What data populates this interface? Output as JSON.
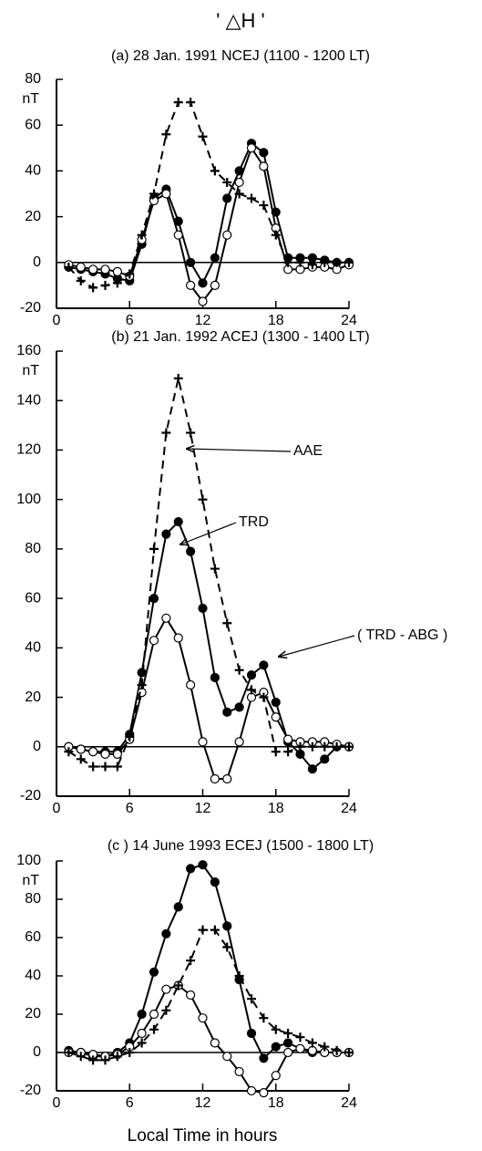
{
  "title": "' △H '",
  "chart_data": [
    {
      "type": "line",
      "title": "(a)   28 Jan. 1991  NCEJ (1100 - 1200 LT)",
      "y_label": "nT",
      "x": [
        1,
        2,
        3,
        4,
        5,
        6,
        7,
        8,
        9,
        10,
        11,
        12,
        13,
        14,
        15,
        16,
        17,
        18,
        19,
        20,
        21,
        22,
        23,
        24
      ],
      "xlim": [
        0,
        24
      ],
      "xticks": [
        0,
        6,
        12,
        18,
        24
      ],
      "ylim": [
        -20,
        80
      ],
      "yticks": [
        -20,
        0,
        20,
        40,
        60,
        80
      ],
      "zero_line": true,
      "series": [
        {
          "marker": "filled",
          "dashed": false,
          "color": "#000000",
          "values": [
            -2,
            -3,
            -4,
            -5,
            -7,
            -8,
            8,
            28,
            32,
            18,
            0,
            -9,
            2,
            28,
            40,
            52,
            48,
            22,
            2,
            2,
            2,
            1,
            0,
            0
          ]
        },
        {
          "marker": "open",
          "dashed": false,
          "color": "#000000",
          "values": [
            -1,
            -2,
            -3,
            -3,
            -4,
            -6,
            10,
            27,
            30,
            12,
            -10,
            -17,
            -10,
            12,
            35,
            50,
            42,
            15,
            -3,
            -3,
            -2,
            -2,
            -3,
            -1
          ]
        },
        {
          "marker": "plus",
          "dashed": true,
          "color": "#000000",
          "values": [
            -2,
            -8,
            -11,
            -10,
            -9,
            -5,
            12,
            30,
            56,
            70,
            70,
            55,
            40,
            35,
            30,
            28,
            25,
            12,
            0,
            0,
            -1,
            0,
            0,
            0
          ]
        }
      ]
    },
    {
      "type": "line",
      "title": "(b)   21 Jan. 1992  ACEJ (1300 - 1400 LT)",
      "y_label": "nT",
      "x": [
        1,
        2,
        3,
        4,
        5,
        6,
        7,
        8,
        9,
        10,
        11,
        12,
        13,
        14,
        15,
        16,
        17,
        18,
        19,
        20,
        21,
        22,
        23,
        24
      ],
      "xlim": [
        0,
        24
      ],
      "xticks": [
        0,
        6,
        12,
        18,
        24
      ],
      "ylim": [
        -20,
        160
      ],
      "yticks": [
        -20,
        0,
        20,
        40,
        60,
        80,
        100,
        120,
        140,
        160
      ],
      "zero_line": true,
      "series": [
        {
          "marker": "filled",
          "dashed": false,
          "color": "#000000",
          "values": [
            0,
            -1,
            -2,
            -2,
            -2,
            5,
            30,
            60,
            86,
            91,
            79,
            56,
            28,
            14,
            16,
            29,
            33,
            18,
            2,
            -3,
            -9,
            -5,
            0,
            0
          ]
        },
        {
          "marker": "open",
          "dashed": false,
          "color": "#000000",
          "values": [
            0,
            -1,
            -2,
            -3,
            -3,
            3,
            22,
            43,
            52,
            44,
            25,
            2,
            -13,
            -13,
            2,
            20,
            22,
            12,
            3,
            2,
            2,
            2,
            1,
            0
          ]
        },
        {
          "marker": "plus",
          "dashed": true,
          "color": "#000000",
          "values": [
            -2,
            -5,
            -8,
            -8,
            -8,
            4,
            25,
            80,
            127,
            149,
            127,
            100,
            72,
            50,
            31,
            23,
            20,
            -2,
            -2,
            0,
            0,
            0,
            0,
            0
          ]
        }
      ],
      "annotations": [
        "AAE",
        "TRD",
        "( TRD - ABG )"
      ]
    },
    {
      "type": "line",
      "title": "(c )   14 June 1993  ECEJ (1500 - 1800  LT)",
      "y_label": "nT",
      "x_label": "Local Time  in  hours",
      "x": [
        1,
        2,
        3,
        4,
        5,
        6,
        7,
        8,
        9,
        10,
        11,
        12,
        13,
        14,
        15,
        16,
        17,
        18,
        19,
        20,
        21,
        22,
        23,
        24
      ],
      "xlim": [
        0,
        24
      ],
      "xticks": [
        0,
        6,
        12,
        18,
        24
      ],
      "ylim": [
        -20,
        100
      ],
      "yticks": [
        -20,
        0,
        20,
        40,
        60,
        80,
        100
      ],
      "zero_line": true,
      "series": [
        {
          "marker": "filled",
          "dashed": false,
          "color": "#000000",
          "values": [
            1,
            0,
            -2,
            -2,
            0,
            5,
            20,
            42,
            62,
            76,
            96,
            98,
            89,
            66,
            38,
            10,
            -3,
            3,
            5,
            2,
            0,
            0,
            0,
            0
          ]
        },
        {
          "marker": "open",
          "dashed": false,
          "color": "#000000",
          "values": [
            0,
            0,
            -1,
            -2,
            -1,
            3,
            10,
            20,
            33,
            35,
            30,
            18,
            5,
            -2,
            -10,
            -20,
            -21,
            -12,
            0,
            2,
            1,
            0,
            0,
            0
          ]
        },
        {
          "marker": "plus",
          "dashed": true,
          "color": "#000000",
          "values": [
            0,
            -2,
            -4,
            -4,
            -2,
            0,
            5,
            12,
            22,
            35,
            48,
            64,
            64,
            55,
            40,
            28,
            18,
            12,
            10,
            8,
            5,
            3,
            1,
            0
          ]
        }
      ]
    }
  ]
}
